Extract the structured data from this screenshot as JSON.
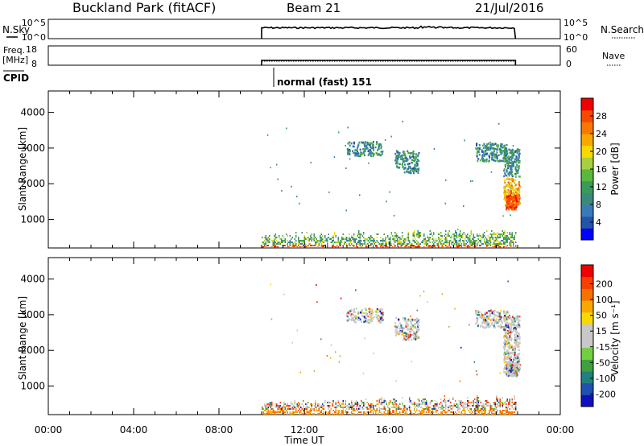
{
  "header": {
    "station": "Buckland Park (fitACF)",
    "beam": "Beam 21",
    "date": "21/Jul/2016"
  },
  "noise_panel": {
    "left_label": "N.Sky",
    "right_label": "N.Search",
    "left_ticks": [
      "10^5",
      "10^0"
    ],
    "right_ticks": [
      "10^5",
      "10^0"
    ]
  },
  "freq_panel": {
    "left_label_1": "Freq.",
    "left_label_2": "[MHz]",
    "right_label": "Nave",
    "left_ticks": [
      "18",
      "8"
    ],
    "right_ticks": [
      "60",
      "0"
    ]
  },
  "cpid": {
    "label": "CPID",
    "program": "normal (fast) 151"
  },
  "chart_data": [
    {
      "type": "heatmap",
      "name": "power",
      "ylabel": "Slant Range [km]",
      "ylim": [
        200,
        4600
      ],
      "yticks": [
        1000,
        2000,
        3000,
        4000
      ],
      "x_ticks": [
        "00:00",
        "04:00",
        "08:00",
        "12:00",
        "16:00",
        "20:00",
        "00:00"
      ],
      "xlim_hours": [
        0,
        24
      ],
      "data_window_hours": [
        10.0,
        21.9
      ],
      "colorbar": {
        "label": "Power [dB]",
        "ticks": [
          "4",
          "8",
          "12",
          "16",
          "20",
          "24",
          "28"
        ],
        "colors": [
          "#0000ff",
          "#2255aa",
          "#3a7ab8",
          "#3a8a7a",
          "#3a9a5a",
          "#5ab83a",
          "#a8d040",
          "#f8d800",
          "#f8a800",
          "#f87800",
          "#f84800",
          "#f00000"
        ]
      }
    },
    {
      "type": "heatmap",
      "name": "velocity",
      "ylabel": "Slant Range [km]",
      "xlabel": "Time UT",
      "ylim": [
        200,
        4600
      ],
      "yticks": [
        1000,
        2000,
        3000,
        4000
      ],
      "x_ticks": [
        "00:00",
        "04:00",
        "08:00",
        "12:00",
        "16:00",
        "20:00",
        "00:00"
      ],
      "xlim_hours": [
        0,
        24
      ],
      "data_window_hours": [
        10.0,
        21.9
      ],
      "colorbar": {
        "label": "Velocity [m s⁻¹]",
        "ticks": [
          "200",
          "100",
          "50",
          "15",
          "-15",
          "-50",
          "-100",
          "-200"
        ],
        "colors": [
          "#1010c0",
          "#2050b0",
          "#208080",
          "#40a040",
          "#70d040",
          "#c8c8c8",
          "#c8c8c8",
          "#f8d800",
          "#f8a800",
          "#f87000",
          "#f84000",
          "#f00000"
        ]
      }
    }
  ]
}
